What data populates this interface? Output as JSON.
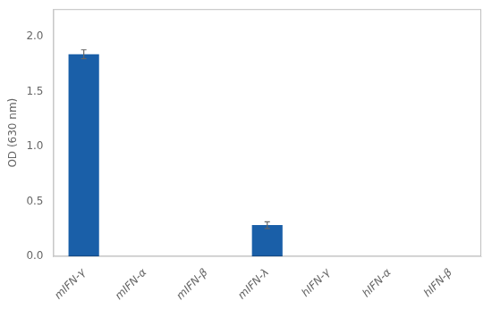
{
  "chart_data": {
    "type": "bar",
    "categories": [
      "mIFN-γ",
      "mIFN-α",
      "mIFN-β",
      "mIFN-λ",
      "hIFN-γ",
      "hIFN-α",
      "hIFN-β"
    ],
    "values": [
      1.84,
      0.0,
      0.0,
      0.285,
      0.0,
      0.0,
      0.0
    ],
    "errors": [
      0.04,
      0.0,
      0.0,
      0.03,
      0.0,
      0.0,
      0.0
    ],
    "color": "#1a5fa8",
    "ylabel": "OD (630 nm)",
    "ylim": [
      0.0,
      2.25
    ],
    "yticks": [
      {
        "value": 0.0,
        "label": "0.0"
      },
      0.5,
      {
        "value": 1.0,
        "label": "1.0"
      },
      1.5,
      {
        "value": 2.0,
        "label": "2.0"
      }
    ],
    "grid": false
  }
}
